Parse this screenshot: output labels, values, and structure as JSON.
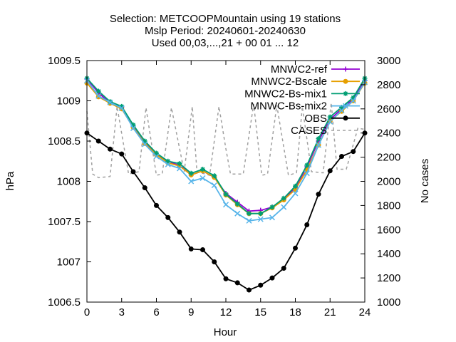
{
  "chart_data": {
    "type": "line",
    "title_lines": [
      "Selection: METCOOPMountain using    19 stations",
      "Mslp   Period: 20240601-20240630",
      "Used 00,03,...,21 + 00 01 ... 12"
    ],
    "xlabel": "Hour",
    "ylabel": "hPa",
    "y2label": "No cases",
    "xlim": [
      0,
      24
    ],
    "ylim": [
      1006.5,
      1009.5
    ],
    "y2lim": [
      1000,
      3000
    ],
    "xticks": [
      "0",
      "3",
      "6",
      "9",
      "12",
      "15",
      "18",
      "21",
      "24"
    ],
    "yticks": [
      "1006.5",
      "1007",
      "1007.5",
      "1008",
      "1008.5",
      "1009",
      "1009.5"
    ],
    "y2ticks": [
      "1000",
      "1200",
      "1400",
      "1600",
      "1800",
      "2000",
      "2200",
      "2400",
      "2600",
      "2800",
      "3000"
    ],
    "grid": false,
    "legend_position": "top-right",
    "x": [
      0,
      1,
      2,
      3,
      4,
      5,
      6,
      7,
      8,
      9,
      10,
      11,
      12,
      13,
      14,
      15,
      16,
      17,
      18,
      19,
      20,
      21,
      22,
      23,
      24
    ],
    "series": [
      {
        "name": "MNWC2-ref",
        "color": "#9400d3",
        "marker": "plus",
        "axis": "y1",
        "values": [
          1009.27,
          1009.1,
          1008.97,
          1008.92,
          1008.68,
          1008.48,
          1008.33,
          1008.24,
          1008.2,
          1008.08,
          1008.13,
          1008.05,
          1007.85,
          1007.74,
          1007.63,
          1007.64,
          1007.68,
          1007.78,
          1007.92,
          1008.18,
          1008.5,
          1008.77,
          1008.9,
          1009.02,
          1009.25
        ]
      },
      {
        "name": "MNWC2-Bscale",
        "color": "#e69f00",
        "marker": "circle",
        "axis": "y1",
        "values": [
          1009.22,
          1009.05,
          1008.97,
          1008.9,
          1008.67,
          1008.47,
          1008.33,
          1008.23,
          1008.19,
          1008.08,
          1008.13,
          1008.05,
          1007.83,
          1007.71,
          1007.6,
          1007.6,
          1007.67,
          1007.77,
          1007.9,
          1008.14,
          1008.45,
          1008.75,
          1008.87,
          1009.0,
          1009.22
        ]
      },
      {
        "name": "MNWC2-Bs-mix1",
        "color": "#009e73",
        "marker": "star",
        "axis": "y1",
        "values": [
          1009.28,
          1009.12,
          1008.99,
          1008.93,
          1008.7,
          1008.5,
          1008.35,
          1008.25,
          1008.22,
          1008.1,
          1008.15,
          1008.07,
          1007.84,
          1007.72,
          1007.6,
          1007.6,
          1007.68,
          1007.79,
          1007.94,
          1008.2,
          1008.53,
          1008.8,
          1008.92,
          1009.04,
          1009.28
        ]
      },
      {
        "name": "MNWC-Bs-mix2",
        "color": "#56b4e9",
        "marker": "cross",
        "axis": "y1",
        "values": [
          1009.25,
          1009.06,
          1008.98,
          1008.91,
          1008.66,
          1008.46,
          1008.31,
          1008.21,
          1008.16,
          1008.0,
          1008.04,
          1007.95,
          1007.71,
          1007.6,
          1007.51,
          1007.53,
          1007.55,
          1007.68,
          1007.85,
          1008.1,
          1008.45,
          1008.74,
          1008.88,
          1009.0,
          1009.23
        ]
      },
      {
        "name": "OBS",
        "color": "#000000",
        "marker": "circle",
        "axis": "y1",
        "values": [
          1008.6,
          1008.5,
          1008.4,
          1008.34,
          1008.12,
          1007.92,
          1007.7,
          1007.55,
          1007.37,
          1007.16,
          1007.15,
          1007.0,
          1006.79,
          1006.74,
          1006.65,
          1006.71,
          1006.8,
          1006.92,
          1007.17,
          1007.46,
          1007.84,
          1008.13,
          1008.31,
          1008.37,
          1008.6
        ]
      },
      {
        "name": "CASES",
        "color": "#a0a0a0",
        "marker": "none",
        "dashed": true,
        "axis": "y2",
        "x": [
          0,
          0.5,
          1,
          2,
          2.6,
          3.6,
          4.5,
          5.1,
          6,
          6.5,
          7.3,
          8.4,
          9.1,
          9.5,
          10.6,
          11.4,
          12,
          12.4,
          13.5,
          14.4,
          15.1,
          15.6,
          16.4,
          17.4,
          18.1,
          18.6,
          19.4,
          20.4,
          21.1,
          21.6,
          22.4,
          23.4,
          24
        ],
        "values": [
          2580,
          2060,
          2030,
          2040,
          2620,
          2060,
          2080,
          2610,
          2050,
          2060,
          2610,
          2080,
          2620,
          2080,
          2050,
          2620,
          2270,
          2060,
          2060,
          2640,
          2050,
          2060,
          2630,
          2050,
          2070,
          2620,
          2080,
          2070,
          2650,
          2100,
          2100,
          2440,
          2430
        ]
      }
    ]
  }
}
